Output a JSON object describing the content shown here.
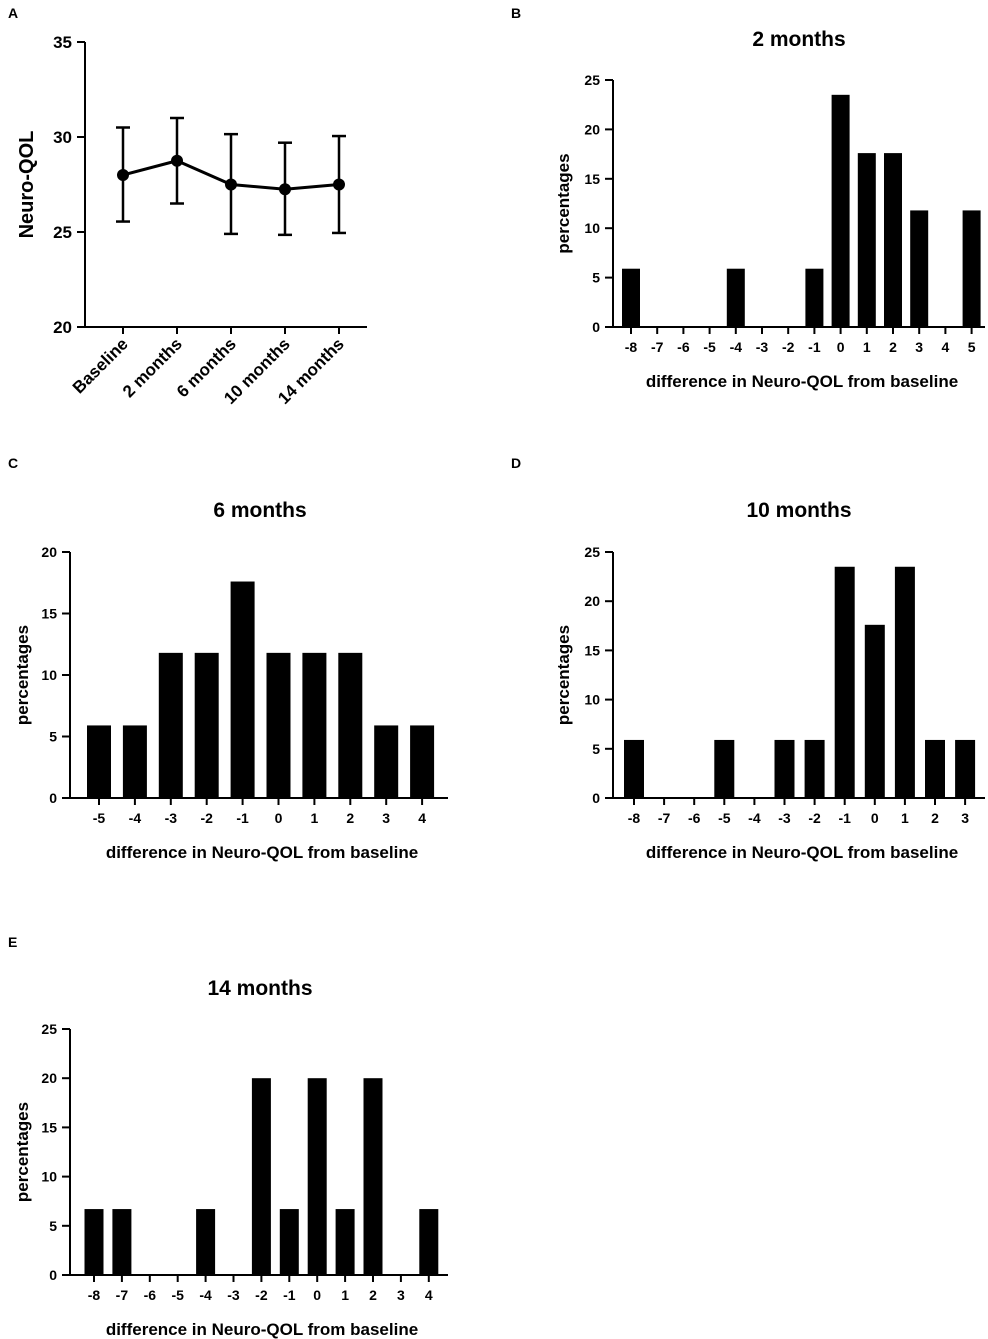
{
  "colors": {
    "ink": "#000000",
    "background": "#ffffff"
  },
  "chart_data": [
    {
      "id": "A",
      "panel_label": "A",
      "type": "line",
      "title": "",
      "xlabel": "",
      "ylabel": "Neuro-QOL",
      "categories": [
        "Baseline",
        "2 months",
        "6 months",
        "10 months",
        "14 months"
      ],
      "values": [
        28.0,
        28.75,
        27.5,
        27.25,
        27.5
      ],
      "error_low": [
        25.55,
        26.5,
        24.9,
        24.85,
        24.95
      ],
      "error_high": [
        30.5,
        31.0,
        30.15,
        29.7,
        30.05
      ],
      "ylim": [
        20,
        35
      ],
      "yticks": [
        20,
        25,
        30,
        35
      ]
    },
    {
      "id": "B",
      "panel_label": "B",
      "type": "bar",
      "title": "2 months",
      "xlabel": "difference in Neuro-QOL from baseline",
      "ylabel": "percentages",
      "categories": [
        "-8",
        "-7",
        "-6",
        "-5",
        "-4",
        "-3",
        "-2",
        "-1",
        "0",
        "1",
        "2",
        "3",
        "4",
        "5"
      ],
      "values": [
        5.9,
        0,
        0,
        0,
        5.9,
        0,
        0,
        5.9,
        23.5,
        17.6,
        17.6,
        11.8,
        0,
        11.8
      ],
      "ylim": [
        0,
        25
      ],
      "yticks": [
        0,
        5,
        10,
        15,
        20,
        25
      ]
    },
    {
      "id": "C",
      "panel_label": "C",
      "type": "bar",
      "title": "6 months",
      "xlabel": "difference in Neuro-QOL from baseline",
      "ylabel": "percentages",
      "categories": [
        "-5",
        "-4",
        "-3",
        "-2",
        "-1",
        "0",
        "1",
        "2",
        "3",
        "4"
      ],
      "values": [
        5.9,
        5.9,
        11.8,
        11.8,
        17.6,
        11.8,
        11.8,
        11.8,
        5.9,
        5.9
      ],
      "ylim": [
        0,
        20
      ],
      "yticks": [
        0,
        5,
        10,
        15,
        20
      ]
    },
    {
      "id": "D",
      "panel_label": "D",
      "type": "bar",
      "title": "10 months",
      "xlabel": "difference in Neuro-QOL from baseline",
      "ylabel": "percentages",
      "categories": [
        "-8",
        "-7",
        "-6",
        "-5",
        "-4",
        "-3",
        "-2",
        "-1",
        "0",
        "1",
        "2",
        "3"
      ],
      "values": [
        5.9,
        0,
        0,
        5.9,
        0,
        5.9,
        5.9,
        23.5,
        17.6,
        23.5,
        5.9,
        5.9
      ],
      "ylim": [
        0,
        25
      ],
      "yticks": [
        0,
        5,
        10,
        15,
        20,
        25
      ]
    },
    {
      "id": "E",
      "panel_label": "E",
      "type": "bar",
      "title": "14 months",
      "xlabel": "difference in Neuro-QOL from baseline",
      "ylabel": "percentages",
      "categories": [
        "-8",
        "-7",
        "-6",
        "-5",
        "-4",
        "-3",
        "-2",
        "-1",
        "0",
        "1",
        "2",
        "3",
        "4"
      ],
      "values": [
        6.7,
        6.7,
        0,
        0,
        6.7,
        0,
        20,
        6.7,
        20,
        6.7,
        20,
        0,
        6.7
      ],
      "ylim": [
        0,
        25
      ],
      "yticks": [
        0,
        5,
        10,
        15,
        20,
        25
      ]
    }
  ]
}
